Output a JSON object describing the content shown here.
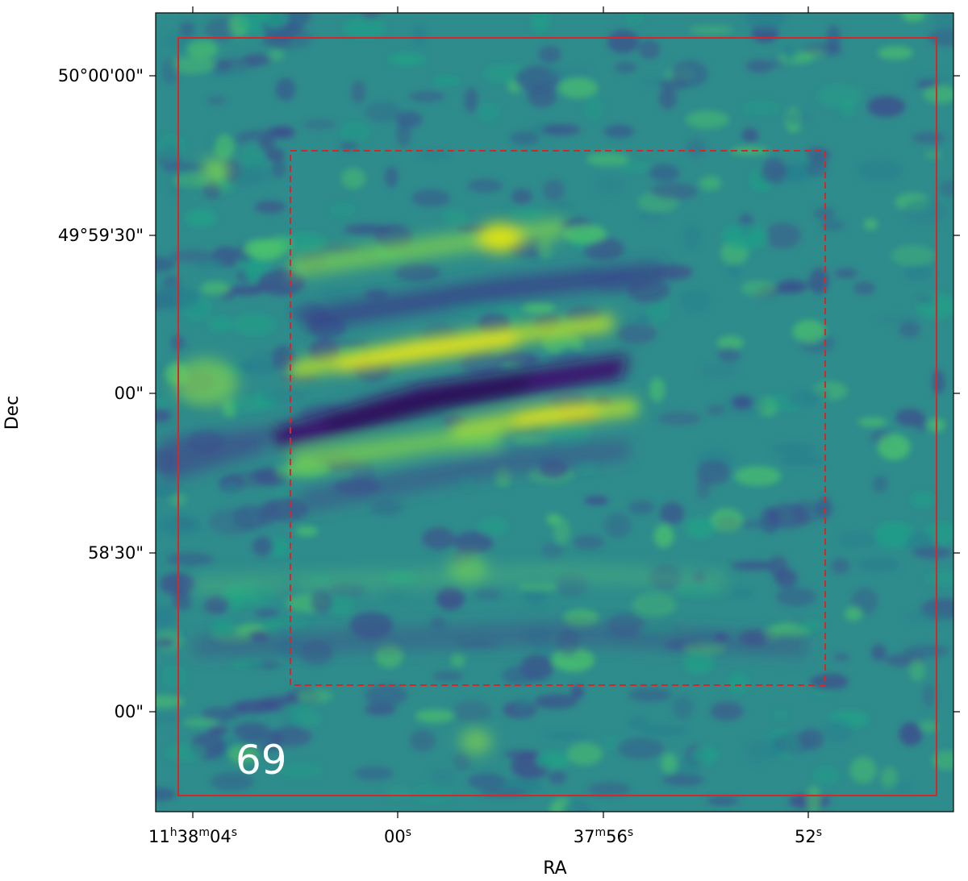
{
  "figure": {
    "panel_label": "69",
    "x_axis": {
      "label": "RA"
    },
    "y_axis": {
      "label": "Dec"
    },
    "ra_ticks": [
      {
        "h": "11",
        "m": "38",
        "s": "04"
      },
      {
        "h": "",
        "m": "",
        "s": "00"
      },
      {
        "h": "",
        "m": "37",
        "s": "56"
      },
      {
        "h": "",
        "m": "",
        "s": "52"
      }
    ],
    "dec_ticks": [
      "50°00'00\"",
      "49°59'30\"",
      "00\"",
      "58'30\"",
      "00\""
    ],
    "colormap": "viridis",
    "overlays": [
      {
        "shape": "square",
        "style": "solid",
        "color": "#d62728"
      },
      {
        "shape": "square",
        "style": "dashed",
        "color": "#d62728"
      }
    ]
  }
}
